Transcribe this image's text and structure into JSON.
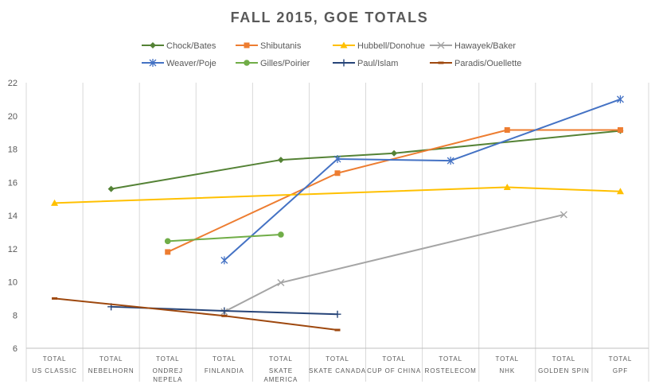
{
  "chart_data": {
    "type": "line",
    "title": "FALL 2015, GOE TOTALS",
    "xlabel": "",
    "ylabel": "",
    "ylim": [
      6,
      22
    ],
    "yticks": [
      6,
      8,
      10,
      12,
      14,
      16,
      18,
      20,
      22
    ],
    "grid": "vertical category separators",
    "legend_position": "top",
    "categories": [
      [
        "TOTAL",
        "US CLASSIC"
      ],
      [
        "TOTAL",
        "NEBELHORN"
      ],
      [
        "TOTAL",
        "ONDREJ",
        "NEPELA"
      ],
      [
        "TOTAL",
        "FINLANDIA"
      ],
      [
        "TOTAL",
        "SKATE",
        "AMERICA"
      ],
      [
        "TOTAL",
        "SKATE CANADA"
      ],
      [
        "TOTAL",
        "CUP OF CHINA"
      ],
      [
        "TOTAL",
        "ROSTELECOM"
      ],
      [
        "TOTAL",
        "NHK"
      ],
      [
        "TOTAL",
        "GOLDEN SPIN"
      ],
      [
        "TOTAL",
        "GPF"
      ]
    ],
    "series": [
      {
        "name": "Chock/Bates",
        "color": "#548235",
        "marker": "diamond",
        "values": [
          null,
          15.6,
          null,
          null,
          17.35,
          null,
          17.75,
          null,
          null,
          null,
          19.1
        ]
      },
      {
        "name": "Shibutanis",
        "color": "#ED7D31",
        "marker": "square",
        "values": [
          null,
          null,
          11.8,
          null,
          null,
          16.55,
          null,
          null,
          19.15,
          null,
          19.15
        ]
      },
      {
        "name": "Hubbell/Donohue",
        "color": "#FFC000",
        "marker": "triangle",
        "values": [
          14.75,
          null,
          null,
          null,
          null,
          null,
          null,
          null,
          15.7,
          null,
          15.45
        ]
      },
      {
        "name": "Hawayek/Baker",
        "color": "#A5A5A5",
        "marker": "x",
        "values": [
          null,
          null,
          null,
          8.2,
          9.95,
          null,
          null,
          null,
          null,
          14.05,
          null
        ]
      },
      {
        "name": "Weaver/Poje",
        "color": "#4472C4",
        "marker": "star",
        "values": [
          null,
          null,
          null,
          11.3,
          null,
          17.4,
          null,
          17.3,
          null,
          null,
          21.0
        ]
      },
      {
        "name": "Gilles/Poirier",
        "color": "#70AD47",
        "marker": "circle",
        "values": [
          null,
          null,
          12.45,
          null,
          12.85,
          null,
          null,
          null,
          null,
          null,
          null
        ]
      },
      {
        "name": "Paul/Islam",
        "color": "#264478",
        "marker": "plus",
        "values": [
          null,
          8.5,
          null,
          8.25,
          null,
          8.05,
          null,
          null,
          null,
          null,
          null
        ]
      },
      {
        "name": "Paradis/Ouellette",
        "color": "#9E480E",
        "marker": "dash",
        "values": [
          9.0,
          null,
          null,
          7.95,
          null,
          7.1,
          null,
          null,
          null,
          null,
          null
        ]
      }
    ]
  }
}
